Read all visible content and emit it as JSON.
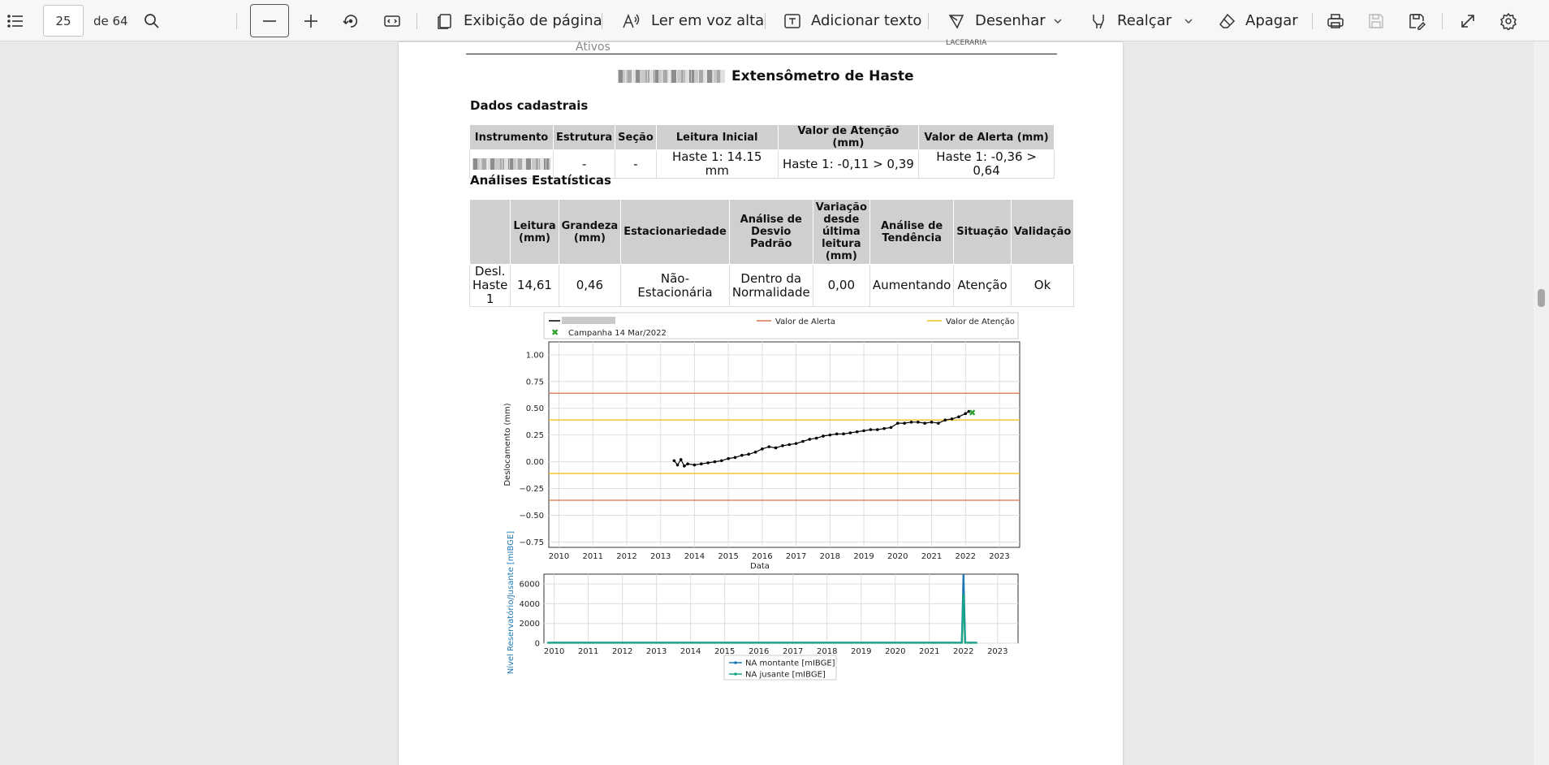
{
  "toolbar": {
    "page_number": "25",
    "page_of": "de 64",
    "page_view": "Exibição de página",
    "read_aloud": "Ler em voz alta",
    "add_text": "Adicionar texto",
    "draw": "Desenhar",
    "highlight": "Realçar",
    "erase": "Apagar",
    "icons": [
      "contents-icon",
      "search-icon",
      "zoom-out-icon",
      "zoom-in-icon",
      "rotate-icon",
      "fit-width-icon",
      "page-view-icon",
      "read-aloud-icon",
      "add-text-icon",
      "draw-icon",
      "highlight-icon",
      "erase-icon",
      "print-icon",
      "save-icon",
      "save-as-icon",
      "fullscreen-icon",
      "settings-icon"
    ]
  },
  "document": {
    "prev_footer": "Ativos",
    "prev_right": "LACERARIA",
    "title": "Extensômetro de Haste",
    "section_registration": "Dados cadastrais",
    "registration_table": {
      "headers": [
        "Instrumento",
        "Estrutura",
        "Seção",
        "Leitura Inicial",
        "Valor de Atenção (mm)",
        "Valor de Alerta (mm)"
      ],
      "row": [
        "",
        "-",
        "-",
        "Haste 1: 14.15 mm",
        "Haste 1: -0,11 > 0,39",
        "Haste 1: -0,36 > 0,64"
      ]
    },
    "section_stats": "Análises Estatísticas",
    "stats_table": {
      "headers": [
        "",
        "Leitura (mm)",
        "Grandeza (mm)",
        "Estacionariedade",
        "Análise de Desvio Padrão",
        "Variação desde última leitura (mm)",
        "Análise de Tendência",
        "Situação",
        "Validação"
      ],
      "row": [
        "Desl. Haste 1",
        "14,61",
        "0,46",
        "Não-Estacionária",
        "Dentro da Normalidade",
        "0,00",
        "Aumentando",
        "Atenção",
        "Ok"
      ]
    }
  },
  "chart_data": [
    {
      "type": "scatter",
      "xlabel": "Data",
      "ylabel": "Deslocamento (mm)",
      "xlim": [
        2009.7,
        2023.6
      ],
      "ylim": [
        -0.8,
        1.12
      ],
      "x_ticks": [
        "2010",
        "2011",
        "2012",
        "2013",
        "2014",
        "2015",
        "2016",
        "2017",
        "2018",
        "2019",
        "2020",
        "2021",
        "2022",
        "2023"
      ],
      "y_ticks": [
        "1.00",
        "0.75",
        "0.50",
        "0.25",
        "0.00",
        "−0.25",
        "−0.50",
        "−0.75"
      ],
      "legend": {
        "placement": "top",
        "entries": [
          {
            "name": "",
            "color": "#000000"
          },
          {
            "name": "Valor de Alerta",
            "color": "#d9774b"
          },
          {
            "name": "Valor de Atenção",
            "color": "#f2c21b"
          },
          {
            "name": "Campanha 14 Mar/2022",
            "color": "#2ca02c"
          }
        ]
      },
      "hlines": [
        {
          "name": "Valor de Alerta",
          "y": 0.64,
          "color": "#d9774b"
        },
        {
          "name": "Valor de Alerta",
          "y": -0.36,
          "color": "#d9774b"
        },
        {
          "name": "Valor de Atenção",
          "y": 0.39,
          "color": "#f2c21b"
        },
        {
          "name": "Valor de Atenção",
          "y": -0.11,
          "color": "#f2c21b"
        }
      ],
      "series": [
        {
          "color": "#000000",
          "x": [
            2013.4,
            2013.5,
            2013.6,
            2013.7,
            2013.8,
            2014.0,
            2014.2,
            2014.4,
            2014.6,
            2014.8,
            2015.0,
            2015.2,
            2015.4,
            2015.6,
            2015.8,
            2016.0,
            2016.2,
            2016.4,
            2016.6,
            2016.8,
            2017.0,
            2017.2,
            2017.4,
            2017.6,
            2017.8,
            2018.0,
            2018.2,
            2018.4,
            2018.6,
            2018.8,
            2019.0,
            2019.2,
            2019.4,
            2019.6,
            2019.8,
            2020.0,
            2020.2,
            2020.4,
            2020.6,
            2020.8,
            2021.0,
            2021.2,
            2021.4,
            2021.6,
            2021.8,
            2022.0,
            2022.1
          ],
          "y": [
            0.01,
            -0.03,
            0.02,
            -0.04,
            -0.02,
            -0.03,
            -0.02,
            -0.01,
            0.0,
            0.01,
            0.03,
            0.04,
            0.06,
            0.07,
            0.09,
            0.12,
            0.14,
            0.13,
            0.15,
            0.16,
            0.17,
            0.19,
            0.21,
            0.22,
            0.24,
            0.25,
            0.26,
            0.26,
            0.27,
            0.28,
            0.29,
            0.3,
            0.3,
            0.31,
            0.32,
            0.36,
            0.36,
            0.37,
            0.37,
            0.36,
            0.37,
            0.36,
            0.39,
            0.4,
            0.42,
            0.45,
            0.47
          ]
        },
        {
          "name": "Campanha 14 Mar/2022",
          "color": "#2ca02c",
          "x": [
            2022.2
          ],
          "y": [
            0.46
          ]
        }
      ]
    },
    {
      "type": "line",
      "ylabel": "Nível Reservatório/Jusante [mIBGE]",
      "xlim": [
        2009.7,
        2023.6
      ],
      "ylim": [
        0,
        7000
      ],
      "x_ticks": [
        "2010",
        "2011",
        "2012",
        "2013",
        "2014",
        "2015",
        "2016",
        "2017",
        "2018",
        "2019",
        "2020",
        "2021",
        "2022",
        "2023"
      ],
      "y_ticks": [
        "6000",
        "4000",
        "2000",
        "0"
      ],
      "legend": {
        "placement": "bottom",
        "entries": [
          {
            "name": "NA montante [mIBGE]",
            "color": "#1f77b4"
          },
          {
            "name": "NA jusante [mIBGE]",
            "color": "#17a589"
          }
        ]
      },
      "series": [
        {
          "name": "NA montante [mIBGE]",
          "color": "#1f77b4",
          "x": [
            2009.8,
            2021.8,
            2021.95,
            2022.0,
            2022.05,
            2022.4
          ],
          "y": [
            60,
            60,
            60,
            7000,
            60,
            60
          ]
        },
        {
          "name": "NA jusante [mIBGE]",
          "color": "#17a589",
          "x": [
            2009.8,
            2021.85,
            2021.95,
            2022.0,
            2022.05,
            2022.4
          ],
          "y": [
            40,
            40,
            40,
            5000,
            40,
            40
          ]
        }
      ]
    }
  ]
}
